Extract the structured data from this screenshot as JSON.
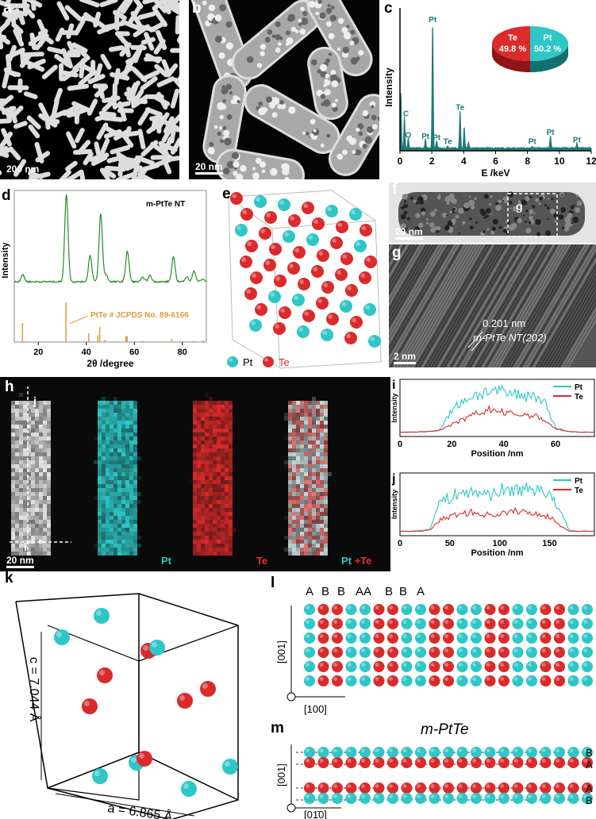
{
  "panels": {
    "a": {
      "label": "a",
      "scale": "200 nm"
    },
    "b": {
      "label": "b",
      "scale": "20 nm"
    },
    "c": {
      "label": "c"
    },
    "d": {
      "label": "d"
    },
    "e": {
      "label": "e",
      "legend": [
        "Pt",
        "Te"
      ]
    },
    "f": {
      "label": "f",
      "scale": "20 nm",
      "box_label": "g"
    },
    "g": {
      "label": "g",
      "scale": "2 nm",
      "spacing": "0.201 nm",
      "plane": "m-PtTe NT(202)"
    },
    "h": {
      "label": "h",
      "scale": "20 nm",
      "arrow_j": "j",
      "arrow_i": "i",
      "maps": [
        "",
        "Pt",
        "Te",
        "Pt +Te"
      ]
    },
    "i": {
      "label": "i"
    },
    "j": {
      "label": "j"
    },
    "k": {
      "label": "k",
      "c_axis": "c = 7.044 Å",
      "a_axis": "a = 6.865 Å"
    },
    "l": {
      "label": "l",
      "stacking": [
        "A",
        "B",
        "B",
        "AA",
        "B",
        "B",
        "A"
      ],
      "vertical_axis": "[001]",
      "horizontal_axis": "[100]"
    },
    "m": {
      "label": "m",
      "title": "m-PtTe",
      "vertical_axis": "[001]",
      "horizontal_axis": "[01̄0]",
      "layers": [
        "B",
        "A",
        "A",
        "B"
      ]
    }
  },
  "colors": {
    "Pt": "#2fc6c6",
    "Te": "#d92b2b",
    "eds": "#1e7a78",
    "xrd": "#2a8a2a",
    "ref": "#e09a3c"
  },
  "chart_data": [
    {
      "panel": "c",
      "type": "line",
      "xlabel": "E /keV",
      "ylabel": "Intensity",
      "xlim": [
        0,
        12
      ],
      "xticks": [
        0,
        2,
        4,
        6,
        8,
        10,
        12
      ],
      "peaks": [
        {
          "x": 0.05,
          "y": 45
        },
        {
          "x": 0.28,
          "y": 25,
          "label": "C"
        },
        {
          "x": 0.52,
          "y": 8,
          "label": "O"
        },
        {
          "x": 1.6,
          "y": 7,
          "label": "Pt"
        },
        {
          "x": 2.05,
          "y": 100,
          "label": "Pt"
        },
        {
          "x": 2.3,
          "y": 6,
          "label": "Pt"
        },
        {
          "x": 3.0,
          "y": 2,
          "label": "Te"
        },
        {
          "x": 3.77,
          "y": 30,
          "label": "Te"
        },
        {
          "x": 4.03,
          "y": 17
        },
        {
          "x": 4.3,
          "y": 5
        },
        {
          "x": 8.3,
          "y": 1,
          "label": "Pt"
        },
        {
          "x": 9.44,
          "y": 10,
          "label": "Pt"
        },
        {
          "x": 11.1,
          "y": 4,
          "label": "Pt"
        }
      ],
      "inset_pie": {
        "type": "pie",
        "slices": [
          {
            "name": "Te",
            "value": 49.8,
            "label": "49.8 %"
          },
          {
            "name": "Pt",
            "value": 50.2,
            "label": "50.2 %"
          }
        ]
      }
    },
    {
      "panel": "d",
      "type": "line",
      "xlabel": "2θ /degree",
      "ylabel": "Intensity",
      "xlim": [
        10,
        90
      ],
      "xticks": [
        20,
        40,
        60,
        80
      ],
      "series": [
        {
          "name": "m-PtTe NT",
          "peaks": [
            {
              "x": 13.5,
              "y": 8
            },
            {
              "x": 31.7,
              "y": 100
            },
            {
              "x": 41.6,
              "y": 30
            },
            {
              "x": 46,
              "y": 78
            },
            {
              "x": 48.2,
              "y": 8
            },
            {
              "x": 57.1,
              "y": 35
            },
            {
              "x": 63.6,
              "y": 5
            },
            {
              "x": 66.5,
              "y": 7
            },
            {
              "x": 76.3,
              "y": 28
            },
            {
              "x": 81.8,
              "y": 6
            },
            {
              "x": 84.9,
              "y": 12
            },
            {
              "x": 88.5,
              "y": 3
            }
          ]
        },
        {
          "name": "PtTe # JCPDS No. 89-6166",
          "type": "stick",
          "sticks": [
            {
              "x": 13.4,
              "y": 48
            },
            {
              "x": 31.5,
              "y": 100
            },
            {
              "x": 41,
              "y": 22
            },
            {
              "x": 44.8,
              "y": 17
            },
            {
              "x": 45.6,
              "y": 38
            },
            {
              "x": 47.7,
              "y": 6
            },
            {
              "x": 56.5,
              "y": 15
            },
            {
              "x": 57,
              "y": 15
            },
            {
              "x": 63.5,
              "y": 3
            },
            {
              "x": 75.6,
              "y": 8
            },
            {
              "x": 84.8,
              "y": 3
            },
            {
              "x": 88.6,
              "y": 4
            }
          ]
        }
      ]
    },
    {
      "panel": "i",
      "type": "line",
      "xlabel": "Position /nm",
      "ylabel": "Intensity",
      "xlim": [
        0,
        75
      ],
      "xticks": [
        0,
        20,
        40,
        60
      ],
      "x": [
        0,
        5,
        10,
        15,
        20,
        25,
        30,
        35,
        40,
        45,
        50,
        55,
        60,
        65,
        70,
        75
      ],
      "series": [
        {
          "name": "Pt",
          "values": [
            2,
            2,
            3,
            5,
            40,
            60,
            68,
            75,
            70,
            68,
            66,
            62,
            10,
            3,
            2,
            2
          ]
        },
        {
          "name": "Te",
          "values": [
            2,
            2,
            3,
            5,
            15,
            25,
            35,
            42,
            36,
            33,
            32,
            26,
            8,
            3,
            2,
            2
          ]
        }
      ]
    },
    {
      "panel": "j",
      "type": "line",
      "xlabel": "Position /nm",
      "ylabel": "Intensity",
      "xlim": [
        0,
        195
      ],
      "xticks": [
        0,
        50,
        100,
        150
      ],
      "x": [
        0,
        10,
        20,
        30,
        40,
        50,
        60,
        70,
        80,
        90,
        100,
        110,
        120,
        130,
        140,
        150,
        160,
        170,
        180,
        190
      ],
      "series": [
        {
          "name": "Pt",
          "values": [
            2,
            2,
            3,
            5,
            50,
            55,
            65,
            62,
            65,
            60,
            68,
            66,
            70,
            68,
            72,
            60,
            35,
            3,
            2,
            2
          ]
        },
        {
          "name": "Te",
          "values": [
            2,
            2,
            2,
            4,
            20,
            25,
            30,
            32,
            30,
            28,
            30,
            32,
            35,
            30,
            30,
            25,
            12,
            2,
            2,
            2
          ]
        }
      ]
    }
  ]
}
